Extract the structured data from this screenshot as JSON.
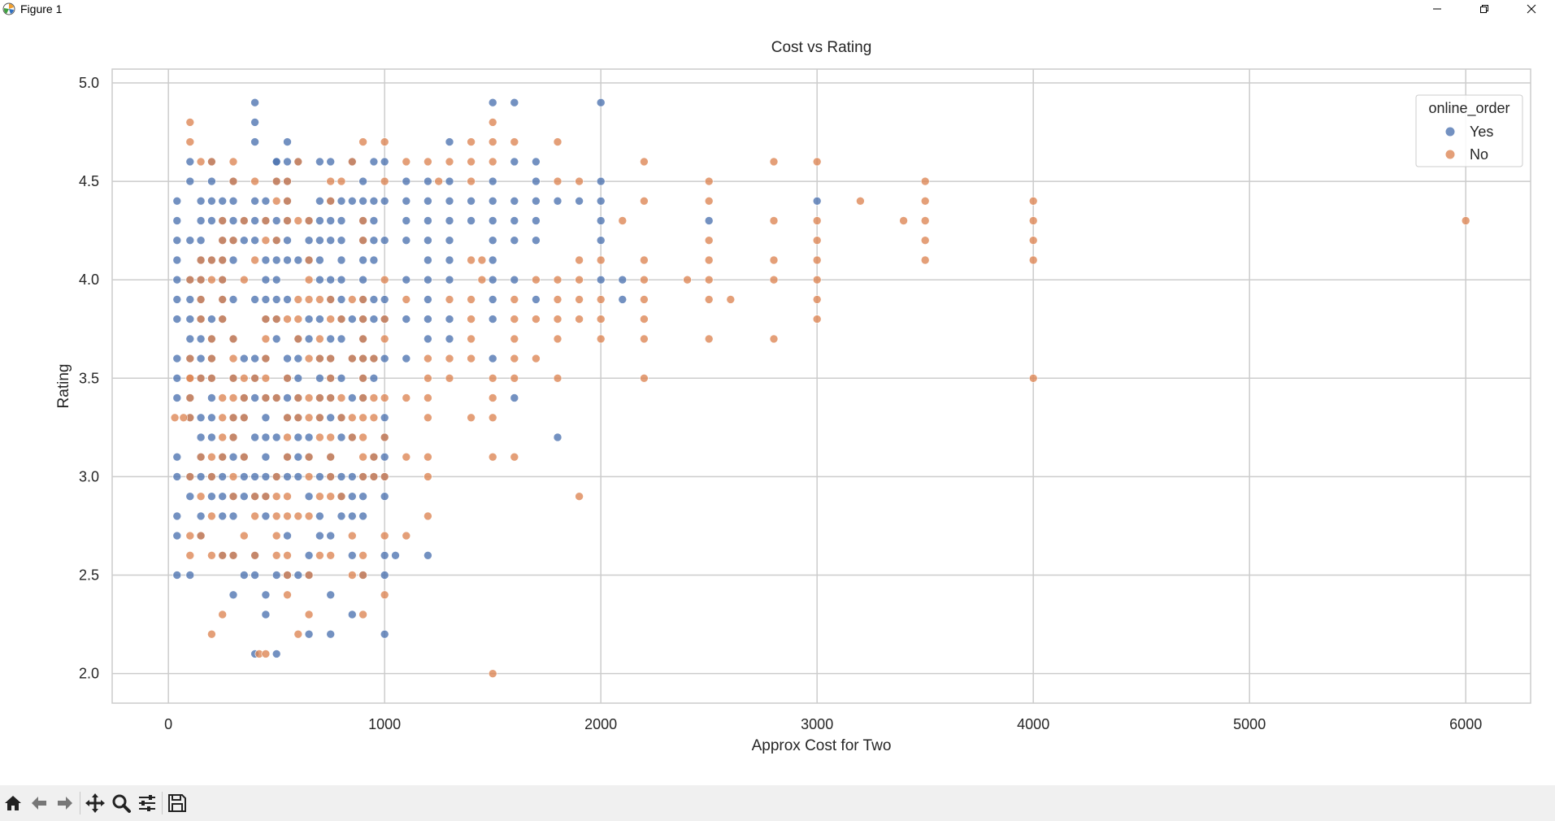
{
  "window": {
    "title": "Figure 1"
  },
  "toolbar": {
    "items": [
      "home-icon",
      "back-arrow-icon",
      "forward-arrow-icon",
      "pan-icon",
      "zoom-icon",
      "configure-subplots-icon",
      "save-icon"
    ]
  },
  "colors": {
    "yes": "#4c72b0",
    "no": "#dd8452",
    "grid": "#cccccc",
    "plot_bg": "#ffffff",
    "axes_edge": "#cccccc"
  },
  "chart_data": {
    "type": "scatter",
    "title": "Cost vs Rating",
    "xlabel": "Approx Cost for Two",
    "ylabel": "Rating",
    "xlim": [
      -260,
      6300
    ],
    "ylim": [
      1.85,
      5.07
    ],
    "xticks": [
      0,
      1000,
      2000,
      3000,
      4000,
      5000,
      6000
    ],
    "yticks": [
      2.0,
      2.5,
      3.0,
      3.5,
      4.0,
      4.5,
      5.0
    ],
    "ytick_labels": [
      "2.0",
      "2.5",
      "3.0",
      "3.5",
      "4.0",
      "4.5",
      "5.0"
    ],
    "grid": true,
    "legend": {
      "title": "online_order",
      "placement": "top-right",
      "entries": [
        "Yes",
        "No"
      ]
    },
    "series": [
      {
        "name": "Yes",
        "x_columns": [
          40,
          100,
          150,
          200,
          250,
          300,
          350,
          400,
          450,
          500,
          550,
          600,
          650,
          700,
          750,
          800,
          850,
          900,
          950,
          1000
        ],
        "y_range": [
          2.5,
          4.6
        ],
        "extra_points": [
          [
            400,
            4.9
          ],
          [
            400,
            4.8
          ],
          [
            400,
            4.7
          ],
          [
            550,
            4.7
          ],
          [
            400,
            2.1
          ],
          [
            500,
            2.1
          ],
          [
            1050,
            2.6
          ],
          [
            1200,
            2.6
          ],
          [
            1000,
            2.2
          ],
          [
            650,
            2.2
          ],
          [
            750,
            2.2
          ],
          [
            850,
            2.3
          ],
          [
            300,
            2.4
          ],
          [
            450,
            2.4
          ],
          [
            750,
            2.4
          ],
          [
            450,
            2.3
          ],
          [
            600,
            4.6
          ],
          [
            500,
            4.6
          ],
          [
            1000,
            4.6
          ],
          [
            1100,
            4.5
          ],
          [
            1200,
            4.5
          ],
          [
            1300,
            4.7
          ],
          [
            1500,
            4.9
          ],
          [
            1600,
            4.9
          ],
          [
            2000,
            4.9
          ],
          [
            1300,
            4.5
          ],
          [
            1400,
            4.4
          ],
          [
            1500,
            4.5
          ],
          [
            1600,
            4.6
          ],
          [
            1700,
            4.6
          ],
          [
            1700,
            4.5
          ],
          [
            1600,
            4.4
          ],
          [
            1700,
            4.4
          ],
          [
            1800,
            4.4
          ],
          [
            1900,
            4.4
          ],
          [
            2000,
            4.5
          ],
          [
            2000,
            4.4
          ],
          [
            2000,
            4.3
          ],
          [
            2000,
            4.2
          ],
          [
            2000,
            4.0
          ],
          [
            2100,
            4.0
          ],
          [
            2100,
            3.9
          ],
          [
            1100,
            4.4
          ],
          [
            1200,
            4.4
          ],
          [
            1300,
            4.4
          ],
          [
            1500,
            4.4
          ],
          [
            1100,
            4.3
          ],
          [
            1200,
            4.3
          ],
          [
            1300,
            4.3
          ],
          [
            1400,
            4.3
          ],
          [
            1500,
            4.3
          ],
          [
            1600,
            4.3
          ],
          [
            1700,
            4.3
          ],
          [
            1100,
            4.2
          ],
          [
            1200,
            4.2
          ],
          [
            1300,
            4.2
          ],
          [
            1500,
            4.2
          ],
          [
            1600,
            4.2
          ],
          [
            1700,
            4.2
          ],
          [
            1200,
            4.1
          ],
          [
            1300,
            4.1
          ],
          [
            1500,
            4.1
          ],
          [
            1100,
            4.0
          ],
          [
            1200,
            4.0
          ],
          [
            1300,
            4.0
          ],
          [
            1500,
            4.0
          ],
          [
            1600,
            4.0
          ],
          [
            1200,
            3.9
          ],
          [
            1500,
            3.9
          ],
          [
            1700,
            3.9
          ],
          [
            1100,
            3.8
          ],
          [
            1200,
            3.8
          ],
          [
            1300,
            3.8
          ],
          [
            1500,
            3.8
          ],
          [
            1300,
            3.7
          ],
          [
            1500,
            3.6
          ],
          [
            1600,
            3.4
          ],
          [
            1800,
            3.2
          ],
          [
            3000,
            4.4
          ],
          [
            2500,
            4.3
          ],
          [
            1200,
            3.7
          ],
          [
            1100,
            3.6
          ]
        ]
      },
      {
        "name": "No",
        "points": [
          [
            100,
            4.8
          ],
          [
            100,
            4.7
          ],
          [
            150,
            4.6
          ],
          [
            200,
            4.6
          ],
          [
            300,
            4.6
          ],
          [
            600,
            4.6
          ],
          [
            850,
            4.6
          ],
          [
            900,
            4.7
          ],
          [
            1000,
            4.7
          ],
          [
            1100,
            4.6
          ],
          [
            1200,
            4.6
          ],
          [
            1300,
            4.6
          ],
          [
            1400,
            4.6
          ],
          [
            1500,
            4.6
          ],
          [
            1400,
            4.7
          ],
          [
            1500,
            4.7
          ],
          [
            1600,
            4.7
          ],
          [
            1800,
            4.7
          ],
          [
            1500,
            4.8
          ],
          [
            2200,
            4.6
          ],
          [
            2800,
            4.6
          ],
          [
            3000,
            4.6
          ],
          [
            1250,
            4.5
          ],
          [
            1400,
            4.5
          ],
          [
            1800,
            4.5
          ],
          [
            1900,
            4.5
          ],
          [
            2500,
            4.5
          ],
          [
            3500,
            4.5
          ],
          [
            2200,
            4.4
          ],
          [
            2500,
            4.4
          ],
          [
            3200,
            4.4
          ],
          [
            3500,
            4.4
          ],
          [
            4000,
            4.4
          ],
          [
            2100,
            4.3
          ],
          [
            2800,
            4.3
          ],
          [
            3000,
            4.3
          ],
          [
            3400,
            4.3
          ],
          [
            3500,
            4.3
          ],
          [
            4000,
            4.3
          ],
          [
            6000,
            4.3
          ],
          [
            2500,
            4.2
          ],
          [
            3000,
            4.2
          ],
          [
            3500,
            4.2
          ],
          [
            4000,
            4.2
          ],
          [
            1400,
            4.1
          ],
          [
            1450,
            4.1
          ],
          [
            1900,
            4.1
          ],
          [
            2000,
            4.1
          ],
          [
            2200,
            4.1
          ],
          [
            2500,
            4.1
          ],
          [
            2800,
            4.1
          ],
          [
            3000,
            4.1
          ],
          [
            3500,
            4.1
          ],
          [
            4000,
            4.1
          ],
          [
            1450,
            4.0
          ],
          [
            1700,
            4.0
          ],
          [
            1800,
            4.0
          ],
          [
            1900,
            4.0
          ],
          [
            2200,
            4.0
          ],
          [
            2400,
            4.0
          ],
          [
            2500,
            4.0
          ],
          [
            2800,
            4.0
          ],
          [
            3000,
            4.0
          ],
          [
            1100,
            3.9
          ],
          [
            1300,
            3.9
          ],
          [
            1400,
            3.9
          ],
          [
            1600,
            3.9
          ],
          [
            1800,
            3.9
          ],
          [
            1900,
            3.9
          ],
          [
            2000,
            3.9
          ],
          [
            2200,
            3.9
          ],
          [
            2500,
            3.9
          ],
          [
            2600,
            3.9
          ],
          [
            3000,
            3.9
          ],
          [
            1400,
            3.8
          ],
          [
            1600,
            3.8
          ],
          [
            1700,
            3.8
          ],
          [
            1800,
            3.8
          ],
          [
            1900,
            3.8
          ],
          [
            2000,
            3.8
          ],
          [
            2200,
            3.8
          ],
          [
            3000,
            3.8
          ],
          [
            1400,
            3.7
          ],
          [
            1600,
            3.7
          ],
          [
            1800,
            3.7
          ],
          [
            2000,
            3.7
          ],
          [
            2200,
            3.7
          ],
          [
            2500,
            3.7
          ],
          [
            2800,
            3.7
          ],
          [
            1200,
            3.6
          ],
          [
            1300,
            3.6
          ],
          [
            1400,
            3.6
          ],
          [
            1600,
            3.6
          ],
          [
            1700,
            3.6
          ],
          [
            1200,
            3.5
          ],
          [
            1300,
            3.5
          ],
          [
            1500,
            3.5
          ],
          [
            1600,
            3.5
          ],
          [
            1800,
            3.5
          ],
          [
            2200,
            3.5
          ],
          [
            4000,
            3.5
          ],
          [
            1100,
            3.4
          ],
          [
            1200,
            3.4
          ],
          [
            1500,
            3.4
          ],
          [
            1200,
            3.3
          ],
          [
            1400,
            3.3
          ],
          [
            1500,
            3.3
          ],
          [
            1100,
            3.1
          ],
          [
            1200,
            3.1
          ],
          [
            1500,
            3.1
          ],
          [
            1600,
            3.1
          ],
          [
            1200,
            3.0
          ],
          [
            1900,
            2.9
          ],
          [
            1200,
            2.8
          ],
          [
            1100,
            2.7
          ],
          [
            1000,
            2.4
          ],
          [
            1500,
            2.0
          ],
          [
            200,
            2.2
          ],
          [
            600,
            2.2
          ],
          [
            420,
            2.1
          ],
          [
            450,
            2.1
          ],
          [
            250,
            2.3
          ],
          [
            650,
            2.3
          ],
          [
            900,
            2.3
          ],
          [
            550,
            2.4
          ],
          [
            200,
            2.6
          ],
          [
            400,
            2.6
          ],
          [
            900,
            2.5
          ],
          [
            550,
            2.5
          ],
          [
            650,
            2.5
          ],
          [
            850,
            2.5
          ],
          [
            350,
            2.7
          ],
          [
            850,
            2.7
          ],
          [
            1000,
            2.7
          ],
          [
            30,
            3.3
          ],
          [
            70,
            3.3
          ],
          [
            100,
            3.5
          ],
          [
            950,
            3.0
          ],
          [
            950,
            3.3
          ],
          [
            950,
            3.1
          ],
          [
            950,
            3.4
          ],
          [
            950,
            3.6
          ],
          [
            1000,
            3.2
          ],
          [
            1000,
            3.0
          ],
          [
            1000,
            3.8
          ],
          [
            1000,
            4.5
          ],
          [
            1000,
            4.0
          ],
          [
            1000,
            3.7
          ],
          [
            1000,
            3.4
          ]
        ],
        "dense_columns": [
          100,
          150,
          200,
          250,
          300,
          350,
          400,
          450,
          500,
          550,
          600,
          650,
          700,
          750,
          800,
          850,
          900
        ],
        "dense_y_range": [
          2.6,
          4.5
        ]
      }
    ]
  }
}
